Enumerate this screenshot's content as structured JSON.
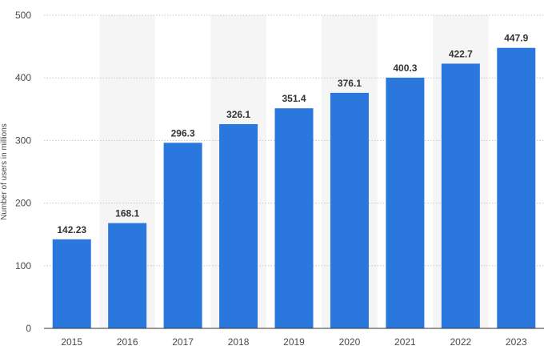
{
  "chart_data": {
    "type": "bar",
    "title": "",
    "xlabel": "",
    "ylabel": "Number of users in millions",
    "categories": [
      "2015",
      "2016",
      "2017",
      "2018",
      "2019",
      "2020",
      "2021",
      "2022",
      "2023"
    ],
    "values": [
      142.23,
      168.1,
      296.3,
      326.1,
      351.4,
      376.1,
      400.3,
      422.7,
      447.9
    ],
    "value_labels": [
      "142.23",
      "168.1",
      "296.3",
      "326.1",
      "351.4",
      "376.1",
      "400.3",
      "422.7",
      "447.9"
    ],
    "ylim": [
      0,
      500
    ],
    "yticks": [
      0,
      100,
      200,
      300,
      400,
      500
    ],
    "grid": true,
    "legend": "none",
    "colors": {
      "bar": "#2a77de",
      "grid": "#c8c8c8",
      "band": "#f5f5f5",
      "axis": "#333333"
    }
  }
}
